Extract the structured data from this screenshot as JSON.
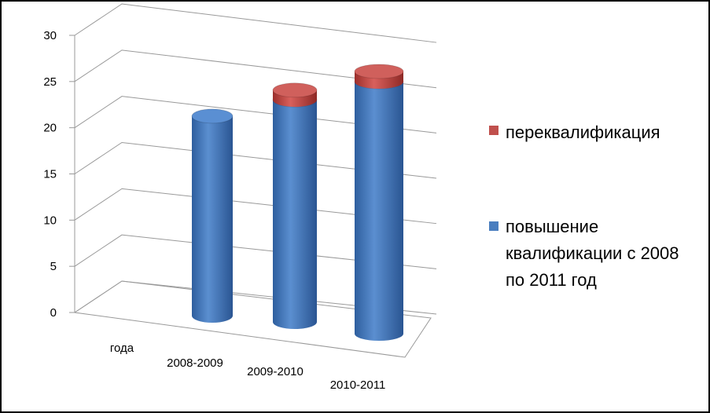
{
  "chart_data": {
    "type": "bar3d-stacked-cylinder",
    "categories": [
      "года",
      "2008-2009",
      "2009-2010",
      "2010-2011"
    ],
    "series": [
      {
        "name": "повышение квалификации с 2008 по 2011 год",
        "color": "#4a7ebf",
        "values": [
          null,
          21,
          23,
          24.5
        ]
      },
      {
        "name": "переквалификация",
        "color": "#c0504d",
        "values": [
          null,
          null,
          1,
          1
        ]
      }
    ],
    "ylim": [
      0,
      30
    ],
    "yticks": [
      0,
      5,
      10,
      15,
      20,
      25,
      30
    ],
    "grid": true,
    "legend": "right"
  }
}
